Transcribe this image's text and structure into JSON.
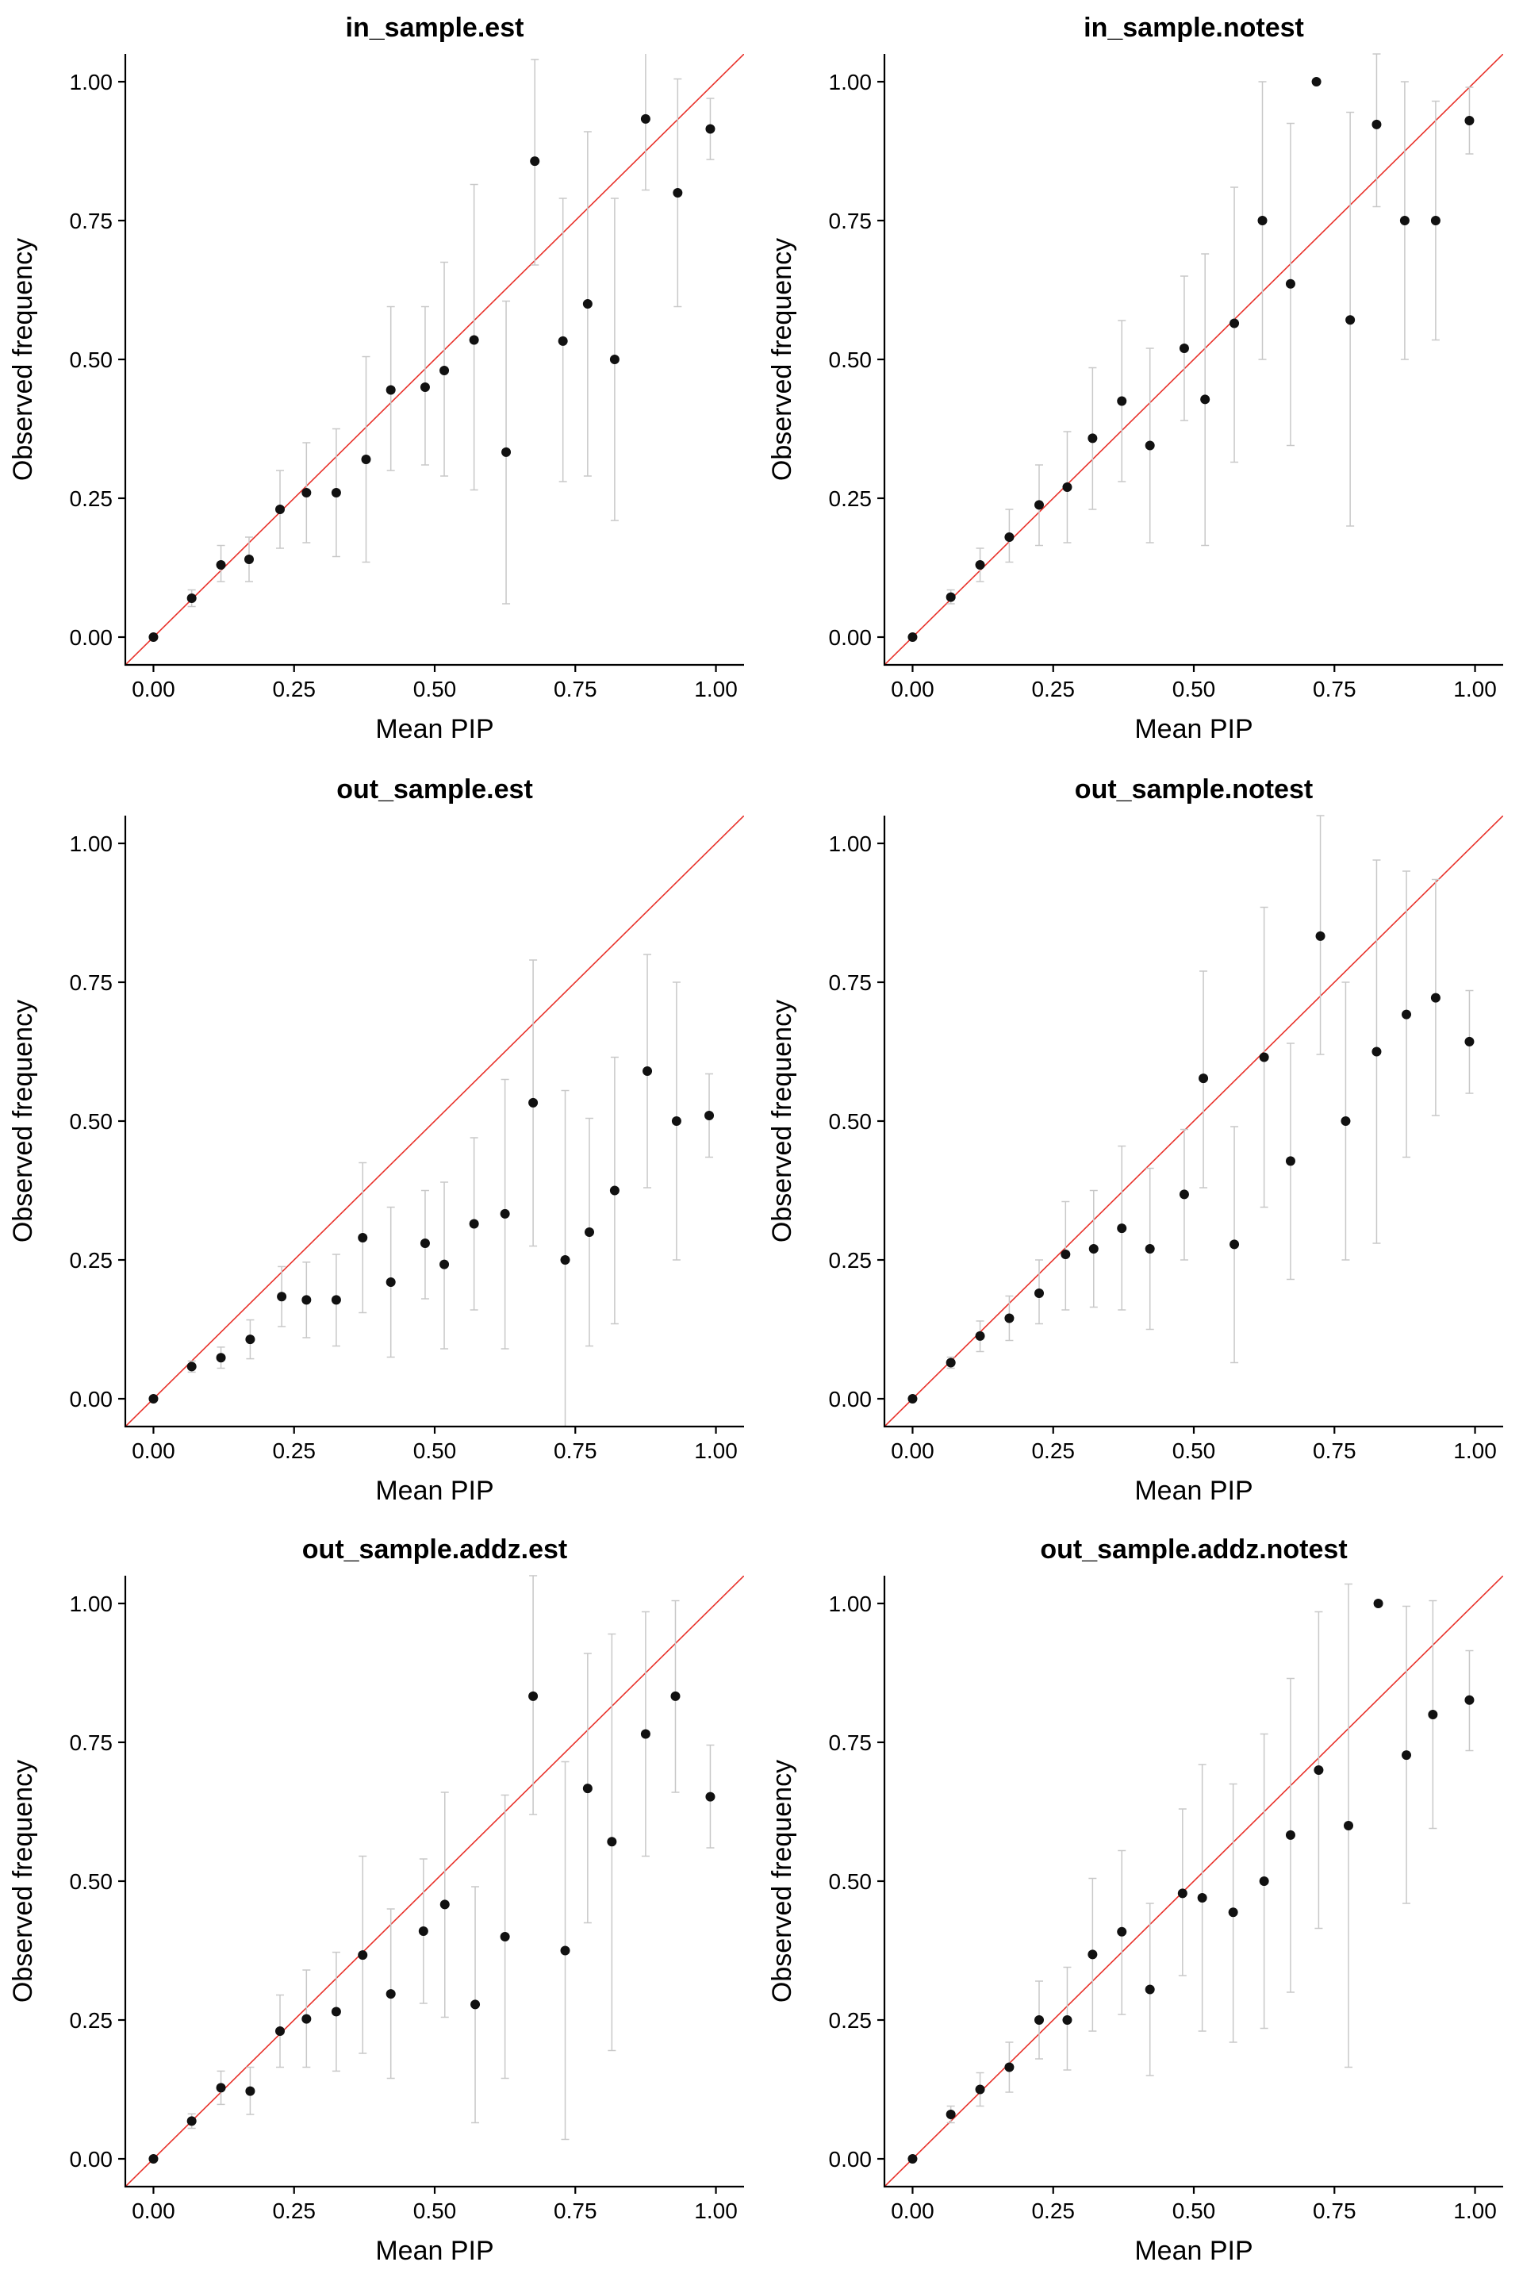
{
  "style": {
    "reference_line_color": "#e8322b",
    "point_color": "#111111",
    "error_bar_color": "#c8c8c8",
    "axis_color": "#000000"
  },
  "chart_data": [
    {
      "type": "scatter",
      "title": "in_sample.est",
      "xlabel": "Mean PIP",
      "ylabel": "Observed frequency",
      "xlim": [
        -0.05,
        1.05
      ],
      "ylim": [
        -0.05,
        1.05
      ],
      "x_ticks": [
        "0.00",
        "0.25",
        "0.50",
        "0.75",
        "1.00"
      ],
      "y_ticks": [
        "0.00",
        "0.25",
        "0.50",
        "0.75",
        "1.00"
      ],
      "reference_line": "y = x",
      "grid": false,
      "points": [
        {
          "x": 0.0,
          "y": 0.0,
          "lo": 0.0,
          "hi": 0.0
        },
        {
          "x": 0.068,
          "y": 0.07,
          "lo": 0.055,
          "hi": 0.085
        },
        {
          "x": 0.12,
          "y": 0.13,
          "lo": 0.1,
          "hi": 0.165
        },
        {
          "x": 0.17,
          "y": 0.14,
          "lo": 0.1,
          "hi": 0.18
        },
        {
          "x": 0.225,
          "y": 0.23,
          "lo": 0.16,
          "hi": 0.3
        },
        {
          "x": 0.272,
          "y": 0.26,
          "lo": 0.17,
          "hi": 0.35
        },
        {
          "x": 0.325,
          "y": 0.26,
          "lo": 0.145,
          "hi": 0.375
        },
        {
          "x": 0.378,
          "y": 0.32,
          "lo": 0.135,
          "hi": 0.505
        },
        {
          "x": 0.422,
          "y": 0.445,
          "lo": 0.3,
          "hi": 0.595
        },
        {
          "x": 0.483,
          "y": 0.45,
          "lo": 0.31,
          "hi": 0.595
        },
        {
          "x": 0.517,
          "y": 0.48,
          "lo": 0.29,
          "hi": 0.675
        },
        {
          "x": 0.57,
          "y": 0.535,
          "lo": 0.265,
          "hi": 0.815
        },
        {
          "x": 0.627,
          "y": 0.333,
          "lo": 0.06,
          "hi": 0.605
        },
        {
          "x": 0.678,
          "y": 0.857,
          "lo": 0.67,
          "hi": 1.04
        },
        {
          "x": 0.728,
          "y": 0.533,
          "lo": 0.28,
          "hi": 0.79
        },
        {
          "x": 0.772,
          "y": 0.6,
          "lo": 0.29,
          "hi": 0.91
        },
        {
          "x": 0.82,
          "y": 0.5,
          "lo": 0.21,
          "hi": 0.79
        },
        {
          "x": 0.875,
          "y": 0.933,
          "lo": 0.805,
          "hi": 1.06
        },
        {
          "x": 0.932,
          "y": 0.8,
          "lo": 0.595,
          "hi": 1.005
        },
        {
          "x": 0.99,
          "y": 0.915,
          "lo": 0.86,
          "hi": 0.97
        }
      ]
    },
    {
      "type": "scatter",
      "title": "in_sample.notest",
      "xlabel": "Mean PIP",
      "ylabel": "Observed frequency",
      "xlim": [
        -0.05,
        1.05
      ],
      "ylim": [
        -0.05,
        1.05
      ],
      "x_ticks": [
        "0.00",
        "0.25",
        "0.50",
        "0.75",
        "1.00"
      ],
      "y_ticks": [
        "0.00",
        "0.25",
        "0.50",
        "0.75",
        "1.00"
      ],
      "reference_line": "y = x",
      "grid": false,
      "points": [
        {
          "x": 0.0,
          "y": 0.0,
          "lo": 0.0,
          "hi": 0.0
        },
        {
          "x": 0.068,
          "y": 0.072,
          "lo": 0.06,
          "hi": 0.085
        },
        {
          "x": 0.12,
          "y": 0.13,
          "lo": 0.1,
          "hi": 0.16
        },
        {
          "x": 0.172,
          "y": 0.18,
          "lo": 0.135,
          "hi": 0.23
        },
        {
          "x": 0.225,
          "y": 0.238,
          "lo": 0.165,
          "hi": 0.31
        },
        {
          "x": 0.275,
          "y": 0.27,
          "lo": 0.17,
          "hi": 0.37
        },
        {
          "x": 0.32,
          "y": 0.358,
          "lo": 0.23,
          "hi": 0.485
        },
        {
          "x": 0.372,
          "y": 0.425,
          "lo": 0.28,
          "hi": 0.57
        },
        {
          "x": 0.422,
          "y": 0.345,
          "lo": 0.17,
          "hi": 0.52
        },
        {
          "x": 0.483,
          "y": 0.52,
          "lo": 0.39,
          "hi": 0.65
        },
        {
          "x": 0.52,
          "y": 0.428,
          "lo": 0.165,
          "hi": 0.69
        },
        {
          "x": 0.572,
          "y": 0.565,
          "lo": 0.315,
          "hi": 0.81
        },
        {
          "x": 0.622,
          "y": 0.75,
          "lo": 0.5,
          "hi": 1.0
        },
        {
          "x": 0.672,
          "y": 0.636,
          "lo": 0.345,
          "hi": 0.925
        },
        {
          "x": 0.718,
          "y": 1.0,
          "lo": 1.0,
          "hi": 1.0
        },
        {
          "x": 0.778,
          "y": 0.571,
          "lo": 0.2,
          "hi": 0.945
        },
        {
          "x": 0.825,
          "y": 0.923,
          "lo": 0.775,
          "hi": 1.05
        },
        {
          "x": 0.875,
          "y": 0.75,
          "lo": 0.5,
          "hi": 1.0
        },
        {
          "x": 0.93,
          "y": 0.75,
          "lo": 0.535,
          "hi": 0.965
        },
        {
          "x": 0.99,
          "y": 0.93,
          "lo": 0.87,
          "hi": 0.99
        }
      ]
    },
    {
      "type": "scatter",
      "title": "out_sample.est",
      "xlabel": "Mean PIP",
      "ylabel": "Observed frequency",
      "xlim": [
        -0.05,
        1.05
      ],
      "ylim": [
        -0.05,
        1.05
      ],
      "x_ticks": [
        "0.00",
        "0.25",
        "0.50",
        "0.75",
        "1.00"
      ],
      "y_ticks": [
        "0.00",
        "0.25",
        "0.50",
        "0.75",
        "1.00"
      ],
      "reference_line": "y = x",
      "grid": false,
      "points": [
        {
          "x": 0.0,
          "y": 0.0,
          "lo": 0.0,
          "hi": 0.0
        },
        {
          "x": 0.068,
          "y": 0.058,
          "lo": 0.048,
          "hi": 0.068
        },
        {
          "x": 0.12,
          "y": 0.074,
          "lo": 0.055,
          "hi": 0.093
        },
        {
          "x": 0.172,
          "y": 0.107,
          "lo": 0.072,
          "hi": 0.142
        },
        {
          "x": 0.228,
          "y": 0.184,
          "lo": 0.13,
          "hi": 0.238
        },
        {
          "x": 0.272,
          "y": 0.178,
          "lo": 0.11,
          "hi": 0.246
        },
        {
          "x": 0.325,
          "y": 0.178,
          "lo": 0.095,
          "hi": 0.26
        },
        {
          "x": 0.372,
          "y": 0.29,
          "lo": 0.155,
          "hi": 0.425
        },
        {
          "x": 0.422,
          "y": 0.21,
          "lo": 0.075,
          "hi": 0.345
        },
        {
          "x": 0.483,
          "y": 0.28,
          "lo": 0.18,
          "hi": 0.375
        },
        {
          "x": 0.517,
          "y": 0.242,
          "lo": 0.09,
          "hi": 0.39
        },
        {
          "x": 0.57,
          "y": 0.315,
          "lo": 0.16,
          "hi": 0.47
        },
        {
          "x": 0.625,
          "y": 0.333,
          "lo": 0.09,
          "hi": 0.575
        },
        {
          "x": 0.675,
          "y": 0.533,
          "lo": 0.275,
          "hi": 0.79
        },
        {
          "x": 0.732,
          "y": 0.25,
          "lo": -0.055,
          "hi": 0.555
        },
        {
          "x": 0.775,
          "y": 0.3,
          "lo": 0.095,
          "hi": 0.505
        },
        {
          "x": 0.82,
          "y": 0.375,
          "lo": 0.135,
          "hi": 0.615
        },
        {
          "x": 0.878,
          "y": 0.59,
          "lo": 0.38,
          "hi": 0.8
        },
        {
          "x": 0.93,
          "y": 0.5,
          "lo": 0.25,
          "hi": 0.75
        },
        {
          "x": 0.988,
          "y": 0.51,
          "lo": 0.435,
          "hi": 0.585
        }
      ]
    },
    {
      "type": "scatter",
      "title": "out_sample.notest",
      "xlabel": "Mean PIP",
      "ylabel": "Observed frequency",
      "xlim": [
        -0.05,
        1.05
      ],
      "ylim": [
        -0.05,
        1.05
      ],
      "x_ticks": [
        "0.00",
        "0.25",
        "0.50",
        "0.75",
        "1.00"
      ],
      "y_ticks": [
        "0.00",
        "0.25",
        "0.50",
        "0.75",
        "1.00"
      ],
      "reference_line": "y = x",
      "grid": false,
      "points": [
        {
          "x": 0.0,
          "y": 0.0,
          "lo": 0.0,
          "hi": 0.0
        },
        {
          "x": 0.068,
          "y": 0.065,
          "lo": 0.055,
          "hi": 0.075
        },
        {
          "x": 0.12,
          "y": 0.113,
          "lo": 0.085,
          "hi": 0.14
        },
        {
          "x": 0.172,
          "y": 0.145,
          "lo": 0.105,
          "hi": 0.185
        },
        {
          "x": 0.225,
          "y": 0.19,
          "lo": 0.135,
          "hi": 0.25
        },
        {
          "x": 0.272,
          "y": 0.26,
          "lo": 0.16,
          "hi": 0.355
        },
        {
          "x": 0.322,
          "y": 0.27,
          "lo": 0.165,
          "hi": 0.375
        },
        {
          "x": 0.372,
          "y": 0.307,
          "lo": 0.16,
          "hi": 0.455
        },
        {
          "x": 0.422,
          "y": 0.27,
          "lo": 0.125,
          "hi": 0.415
        },
        {
          "x": 0.483,
          "y": 0.368,
          "lo": 0.25,
          "hi": 0.485
        },
        {
          "x": 0.517,
          "y": 0.577,
          "lo": 0.38,
          "hi": 0.77
        },
        {
          "x": 0.572,
          "y": 0.278,
          "lo": 0.065,
          "hi": 0.49
        },
        {
          "x": 0.625,
          "y": 0.615,
          "lo": 0.345,
          "hi": 0.885
        },
        {
          "x": 0.672,
          "y": 0.428,
          "lo": 0.215,
          "hi": 0.64
        },
        {
          "x": 0.725,
          "y": 0.833,
          "lo": 0.62,
          "hi": 1.05
        },
        {
          "x": 0.77,
          "y": 0.5,
          "lo": 0.25,
          "hi": 0.75
        },
        {
          "x": 0.825,
          "y": 0.625,
          "lo": 0.28,
          "hi": 0.97
        },
        {
          "x": 0.878,
          "y": 0.692,
          "lo": 0.435,
          "hi": 0.95
        },
        {
          "x": 0.93,
          "y": 0.722,
          "lo": 0.51,
          "hi": 0.935
        },
        {
          "x": 0.99,
          "y": 0.643,
          "lo": 0.55,
          "hi": 0.735
        }
      ]
    },
    {
      "type": "scatter",
      "title": "out_sample.addz.est",
      "xlabel": "Mean PIP",
      "ylabel": "Observed frequency",
      "xlim": [
        -0.05,
        1.05
      ],
      "ylim": [
        -0.05,
        1.05
      ],
      "x_ticks": [
        "0.00",
        "0.25",
        "0.50",
        "0.75",
        "1.00"
      ],
      "y_ticks": [
        "0.00",
        "0.25",
        "0.50",
        "0.75",
        "1.00"
      ],
      "reference_line": "y = x",
      "grid": false,
      "points": [
        {
          "x": 0.0,
          "y": 0.0,
          "lo": 0.0,
          "hi": 0.0
        },
        {
          "x": 0.068,
          "y": 0.068,
          "lo": 0.055,
          "hi": 0.081
        },
        {
          "x": 0.12,
          "y": 0.128,
          "lo": 0.098,
          "hi": 0.158
        },
        {
          "x": 0.172,
          "y": 0.122,
          "lo": 0.08,
          "hi": 0.165
        },
        {
          "x": 0.225,
          "y": 0.23,
          "lo": 0.165,
          "hi": 0.295
        },
        {
          "x": 0.272,
          "y": 0.252,
          "lo": 0.165,
          "hi": 0.34
        },
        {
          "x": 0.325,
          "y": 0.265,
          "lo": 0.158,
          "hi": 0.372
        },
        {
          "x": 0.372,
          "y": 0.367,
          "lo": 0.19,
          "hi": 0.545
        },
        {
          "x": 0.422,
          "y": 0.297,
          "lo": 0.145,
          "hi": 0.45
        },
        {
          "x": 0.48,
          "y": 0.41,
          "lo": 0.28,
          "hi": 0.54
        },
        {
          "x": 0.518,
          "y": 0.458,
          "lo": 0.255,
          "hi": 0.66
        },
        {
          "x": 0.572,
          "y": 0.278,
          "lo": 0.065,
          "hi": 0.49
        },
        {
          "x": 0.625,
          "y": 0.4,
          "lo": 0.145,
          "hi": 0.655
        },
        {
          "x": 0.675,
          "y": 0.833,
          "lo": 0.62,
          "hi": 1.05
        },
        {
          "x": 0.732,
          "y": 0.375,
          "lo": 0.035,
          "hi": 0.715
        },
        {
          "x": 0.772,
          "y": 0.667,
          "lo": 0.425,
          "hi": 0.91
        },
        {
          "x": 0.815,
          "y": 0.571,
          "lo": 0.195,
          "hi": 0.945
        },
        {
          "x": 0.875,
          "y": 0.765,
          "lo": 0.545,
          "hi": 0.985
        },
        {
          "x": 0.928,
          "y": 0.833,
          "lo": 0.66,
          "hi": 1.005
        },
        {
          "x": 0.99,
          "y": 0.652,
          "lo": 0.56,
          "hi": 0.745
        }
      ]
    },
    {
      "type": "scatter",
      "title": "out_sample.addz.notest",
      "xlabel": "Mean PIP",
      "ylabel": "Observed frequency",
      "xlim": [
        -0.05,
        1.05
      ],
      "ylim": [
        -0.05,
        1.05
      ],
      "x_ticks": [
        "0.00",
        "0.25",
        "0.50",
        "0.75",
        "1.00"
      ],
      "y_ticks": [
        "0.00",
        "0.25",
        "0.50",
        "0.75",
        "1.00"
      ],
      "reference_line": "y = x",
      "grid": false,
      "points": [
        {
          "x": 0.0,
          "y": 0.0,
          "lo": 0.0,
          "hi": 0.0
        },
        {
          "x": 0.068,
          "y": 0.08,
          "lo": 0.065,
          "hi": 0.095
        },
        {
          "x": 0.12,
          "y": 0.125,
          "lo": 0.095,
          "hi": 0.155
        },
        {
          "x": 0.172,
          "y": 0.165,
          "lo": 0.12,
          "hi": 0.21
        },
        {
          "x": 0.225,
          "y": 0.25,
          "lo": 0.18,
          "hi": 0.32
        },
        {
          "x": 0.275,
          "y": 0.25,
          "lo": 0.16,
          "hi": 0.345
        },
        {
          "x": 0.32,
          "y": 0.368,
          "lo": 0.23,
          "hi": 0.505
        },
        {
          "x": 0.372,
          "y": 0.409,
          "lo": 0.26,
          "hi": 0.555
        },
        {
          "x": 0.422,
          "y": 0.305,
          "lo": 0.15,
          "hi": 0.46
        },
        {
          "x": 0.48,
          "y": 0.478,
          "lo": 0.33,
          "hi": 0.63
        },
        {
          "x": 0.515,
          "y": 0.47,
          "lo": 0.23,
          "hi": 0.71
        },
        {
          "x": 0.57,
          "y": 0.444,
          "lo": 0.21,
          "hi": 0.675
        },
        {
          "x": 0.625,
          "y": 0.5,
          "lo": 0.235,
          "hi": 0.765
        },
        {
          "x": 0.672,
          "y": 0.583,
          "lo": 0.3,
          "hi": 0.865
        },
        {
          "x": 0.722,
          "y": 0.7,
          "lo": 0.415,
          "hi": 0.985
        },
        {
          "x": 0.775,
          "y": 0.6,
          "lo": 0.165,
          "hi": 1.035
        },
        {
          "x": 0.828,
          "y": 1.0,
          "lo": 1.0,
          "hi": 1.0
        },
        {
          "x": 0.878,
          "y": 0.727,
          "lo": 0.46,
          "hi": 0.995
        },
        {
          "x": 0.925,
          "y": 0.8,
          "lo": 0.595,
          "hi": 1.005
        },
        {
          "x": 0.99,
          "y": 0.826,
          "lo": 0.735,
          "hi": 0.915
        }
      ]
    }
  ]
}
